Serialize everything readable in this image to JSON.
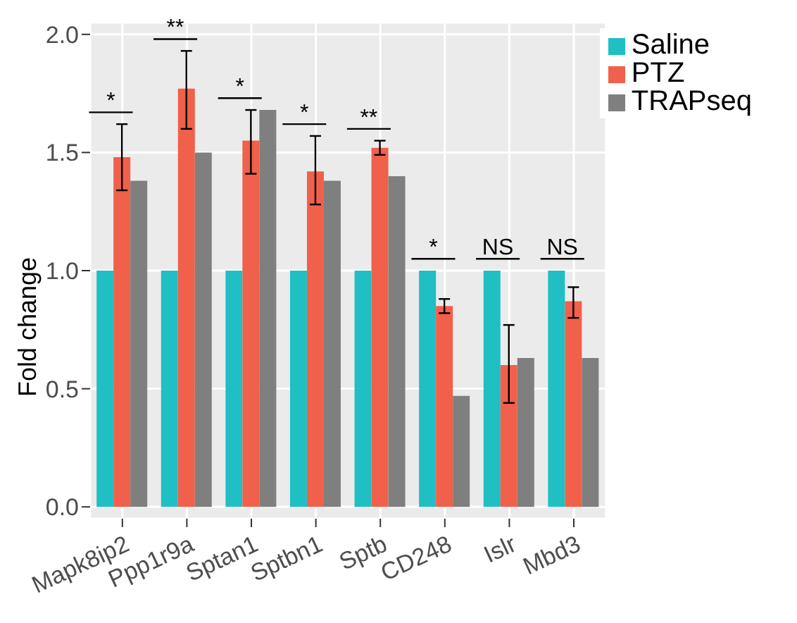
{
  "chart_data": {
    "type": "bar",
    "ylabel": "Fold change",
    "categories": [
      "Mapk8ip2",
      "Ppp1r9a",
      "Sptan1",
      "Sptbn1",
      "Sptb",
      "CD248",
      "Islr",
      "Mbd3"
    ],
    "series": [
      {
        "name": "Saline",
        "color": "#1fbfc4",
        "values": [
          1,
          1,
          1,
          1,
          1,
          1,
          1,
          1
        ]
      },
      {
        "name": "PTZ",
        "color": "#f0604a",
        "values": [
          1.48,
          1.77,
          1.55,
          1.42,
          1.52,
          0.85,
          0.6,
          0.87
        ],
        "errors": [
          [
            1.34,
            1.62
          ],
          [
            1.6,
            1.93
          ],
          [
            1.41,
            1.68
          ],
          [
            1.28,
            1.57
          ],
          [
            1.49,
            1.55
          ],
          [
            0.82,
            0.88
          ],
          [
            0.44,
            0.77
          ],
          [
            0.8,
            0.93
          ]
        ]
      },
      {
        "name": "TRAPseq",
        "color": "#7f7f7f",
        "values": [
          1.38,
          1.5,
          1.68,
          1.38,
          1.4,
          0.47,
          0.63,
          0.63
        ]
      }
    ],
    "ylim": [
      -0.05,
      2.05
    ],
    "yticks": [
      {
        "value": 0,
        "label": "0.0"
      },
      0.5,
      {
        "value": 1,
        "label": "1.0"
      },
      1.5,
      {
        "value": 2,
        "label": "2.0"
      }
    ],
    "grid": true,
    "legend": "top right",
    "annotations": [
      "*",
      "**",
      "*",
      "*",
      "**",
      "*",
      "NS",
      "NS"
    ]
  }
}
